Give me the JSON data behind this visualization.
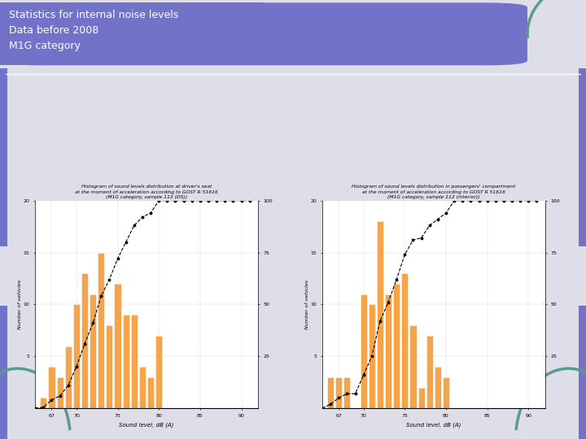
{
  "title_line1": "Statistics for internal noise levels",
  "title_line2": "Data before 2008",
  "title_line3": "M1G category",
  "header_bg_color": "#7272c8",
  "slide_bg_color": "#dedee8",
  "bar_color": "#f4a44a",
  "teal_color": "#5a9a8a",
  "blue_bar_color": "#7272c8",
  "chart1": {
    "title_line1": "Histogram of sound levels distribution at driver's seat",
    "title_line2": "at the moment of acceleration according to GOST R 51616",
    "title_line3": "(M1G category, sample 112 (DS))",
    "xlabel": "Sound level, dB (A)",
    "ylabel": "Number of vehicles",
    "x_ticks": [
      67,
      70,
      75,
      80,
      85,
      90
    ],
    "x_tick_labels": [
      "67",
      "70",
      "75",
      "80",
      "85",
      "90"
    ],
    "xlim": [
      65,
      92
    ],
    "ylim_left": [
      0,
      20
    ],
    "ylim_right": [
      0,
      100
    ],
    "y_ticks_left": [
      5,
      10,
      15,
      20
    ],
    "y_ticks_right": [
      25,
      50,
      75,
      100
    ],
    "bar_positions": [
      66,
      67,
      68,
      69,
      70,
      71,
      72,
      73,
      74,
      75,
      76,
      77,
      78,
      79,
      80
    ],
    "bar_heights": [
      1,
      4,
      3,
      6,
      10,
      13,
      11,
      15,
      8,
      12,
      9,
      9,
      4,
      3,
      7
    ],
    "cum_x": [
      65,
      66,
      67,
      68,
      69,
      70,
      71,
      72,
      73,
      74,
      75,
      76,
      77,
      78,
      79,
      80,
      81,
      82,
      83,
      84,
      85,
      86,
      87,
      88,
      89,
      90,
      91
    ],
    "cum_y": [
      0,
      0.5,
      4,
      6,
      11,
      20,
      31,
      41,
      54,
      62,
      72,
      80,
      88,
      92,
      94,
      100,
      100,
      100,
      100,
      100,
      100,
      100,
      100,
      100,
      100,
      100,
      100
    ]
  },
  "chart2": {
    "title_line1": "Histogram of sound levels distribution in passengers' compartment",
    "title_line2": "at the moment of acceleration according to GOST R 51616",
    "title_line3": "(M1G category, sample 112 (interior))",
    "xlabel": "Sound level, dB (A)",
    "ylabel": "Number of vehicles",
    "x_ticks": [
      67,
      70,
      75,
      80,
      85,
      90
    ],
    "x_tick_labels": [
      "67",
      "70",
      "75",
      "80",
      "85",
      "90"
    ],
    "xlim": [
      65,
      92
    ],
    "ylim_left": [
      0,
      20
    ],
    "ylim_right": [
      0,
      100
    ],
    "y_ticks_left": [
      5,
      10,
      15,
      20
    ],
    "y_ticks_right": [
      25,
      50,
      75,
      100
    ],
    "bar_positions": [
      66,
      67,
      68,
      69,
      70,
      71,
      72,
      73,
      74,
      75,
      76,
      77,
      78,
      79,
      80
    ],
    "bar_heights": [
      3,
      3,
      3,
      0,
      11,
      10,
      18,
      11,
      12,
      13,
      8,
      2,
      7,
      4,
      3
    ],
    "cum_x": [
      65,
      66,
      67,
      68,
      69,
      70,
      71,
      72,
      73,
      74,
      75,
      76,
      77,
      78,
      79,
      80,
      81,
      82,
      83,
      84,
      85,
      86,
      87,
      88,
      89,
      90,
      91
    ],
    "cum_y": [
      0,
      2,
      5,
      7,
      7,
      16,
      25,
      42,
      51,
      62,
      74,
      81,
      82,
      88,
      91,
      94,
      100,
      100,
      100,
      100,
      100,
      100,
      100,
      100,
      100,
      100,
      100
    ]
  }
}
